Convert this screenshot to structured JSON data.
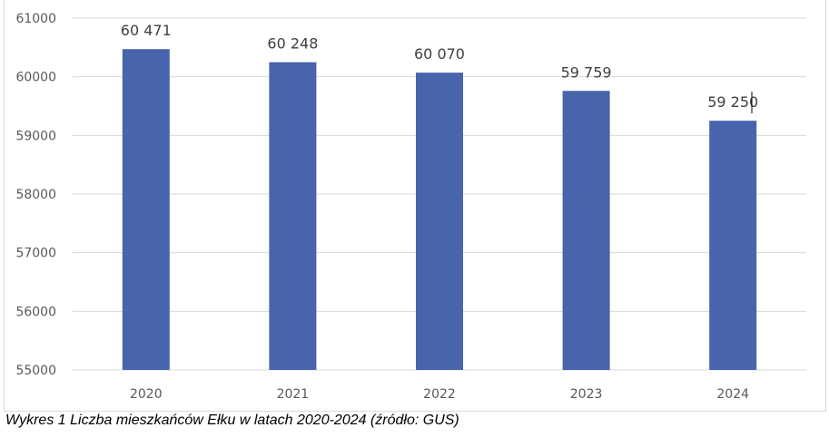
{
  "chart_data": {
    "type": "bar",
    "title": "",
    "xlabel": "",
    "ylabel": "",
    "categories": [
      "2020",
      "2021",
      "2022",
      "2023",
      "2024"
    ],
    "values": [
      60471,
      60248,
      60070,
      59759,
      59250
    ],
    "data_labels": [
      "60 471",
      "60 248",
      "60 070",
      "59 759",
      "59 250"
    ],
    "ylim": [
      55000,
      61000
    ],
    "yticks": [
      55000,
      56000,
      57000,
      58000,
      59000,
      60000,
      61000
    ],
    "ytick_labels": [
      "55000",
      "56000",
      "57000",
      "58000",
      "59000",
      "60000",
      "61000"
    ],
    "grid": true,
    "legend": "none",
    "bar_color": "#4764ac"
  },
  "caption": "Wykres 1 Liczba mieszkańców Ełku w latach 2020-2024 (źródło: GUS)"
}
